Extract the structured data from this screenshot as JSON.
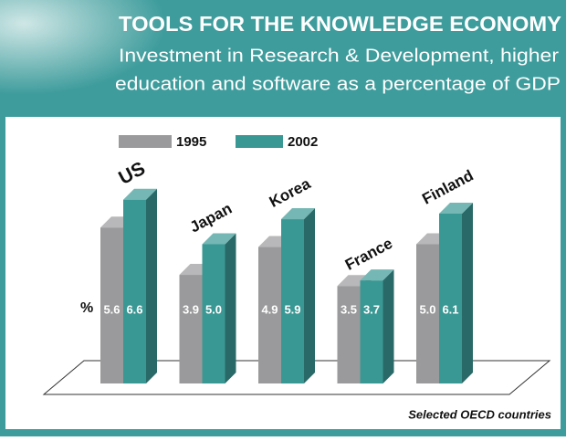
{
  "chart_data": {
    "type": "bar3d",
    "title": "TOOLS FOR THE KNOWLEDGE ECONOMY",
    "subtitle": [
      "Investment in Research & Development, higher",
      "education and software as a percentage of GDP"
    ],
    "unit_label": "%",
    "footnote": "Selected OECD countries",
    "categories": [
      "US",
      "Japan",
      "Korea",
      "France",
      "Finland"
    ],
    "series": [
      {
        "name": "1995",
        "color": "#9a9a9c",
        "values": [
          5.6,
          3.9,
          4.9,
          3.5,
          5.0
        ],
        "value_labels": [
          "5.6",
          "3.9",
          "4.9",
          "3.5",
          "5.0"
        ]
      },
      {
        "name": "2002",
        "color": "#3a9894",
        "values": [
          6.6,
          5.0,
          5.9,
          3.7,
          6.1
        ],
        "value_labels": [
          "6.6",
          "5.0",
          "5.9",
          "3.7",
          "6.1"
        ]
      }
    ]
  }
}
